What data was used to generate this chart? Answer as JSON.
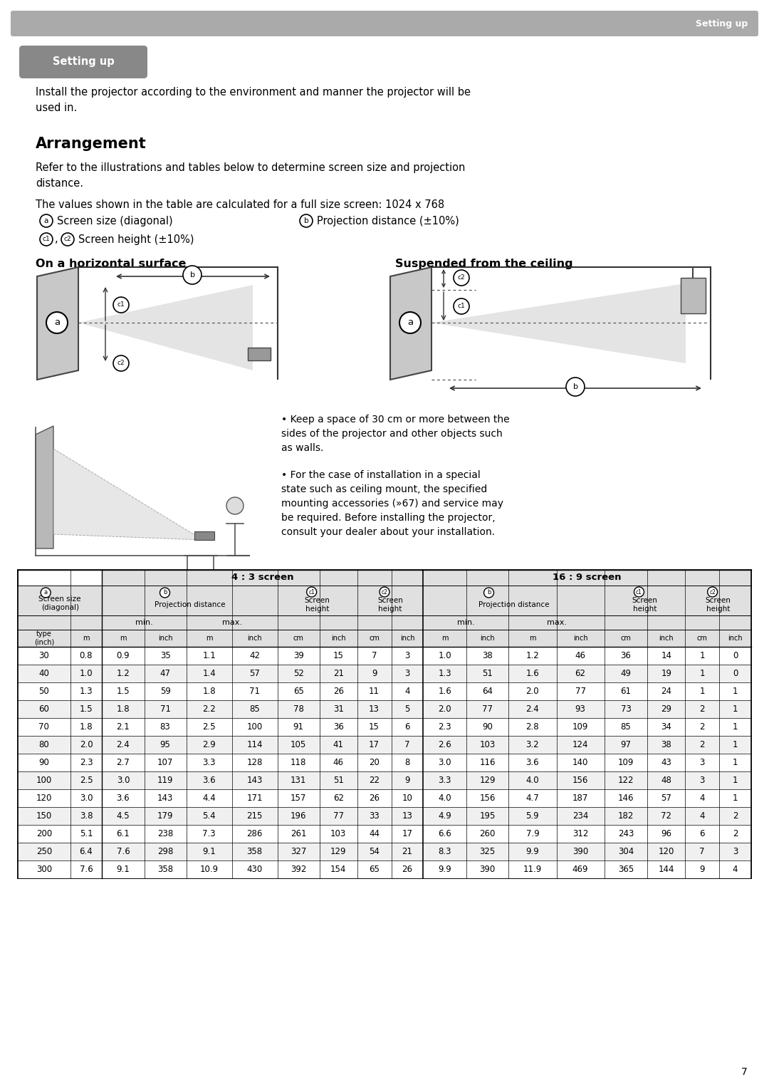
{
  "page_bg": "#ffffff",
  "header_bar_color": "#aaaaaa",
  "header_text": "Setting up",
  "header_text_color": "#ffffff",
  "setting_up_btn_color": "#888888",
  "setting_up_btn_text": "Setting up",
  "intro_text": "Install the projector according to the environment and manner the projector will be\nused in.",
  "arrangement_title": "Arrangement",
  "ref_text": "Refer to the illustrations and tables below to determine screen size and projection\ndistance.",
  "values_text": "The values shown in the table are calculated for a full size screen: 1024 x 768",
  "legend_a": "Screen size (diagonal)",
  "legend_b": "Projection distance (±10%)",
  "legend_c1c2": "Screen height (±10%)",
  "horiz_title": "On a horizontal surface",
  "ceiling_title": "Suspended from the ceiling",
  "bullet1": "• Keep a space of 30 cm or more between the\nsides of the projector and other objects such\nas walls.",
  "bullet2": "• For the case of installation in a special\nstate such as ceiling mount, the specified\nmounting accessories (»67) and service may\nbe required. Before installing the projector,\nconsult your dealer about your installation.",
  "table_header_43": "4 : 3 screen",
  "table_header_169": "16 : 9 screen",
  "table_data": [
    [
      30,
      0.8,
      0.9,
      35,
      1.1,
      42,
      39,
      15,
      7,
      3,
      1.0,
      38,
      1.2,
      46,
      36,
      14,
      1,
      0
    ],
    [
      40,
      1.0,
      1.2,
      47,
      1.4,
      57,
      52,
      21,
      9,
      3,
      1.3,
      51,
      1.6,
      62,
      49,
      19,
      1,
      0
    ],
    [
      50,
      1.3,
      1.5,
      59,
      1.8,
      71,
      65,
      26,
      11,
      4,
      1.6,
      64,
      2.0,
      77,
      61,
      24,
      1,
      1
    ],
    [
      60,
      1.5,
      1.8,
      71,
      2.2,
      85,
      78,
      31,
      13,
      5,
      2.0,
      77,
      2.4,
      93,
      73,
      29,
      2,
      1
    ],
    [
      70,
      1.8,
      2.1,
      83,
      2.5,
      100,
      91,
      36,
      15,
      6,
      2.3,
      90,
      2.8,
      109,
      85,
      34,
      2,
      1
    ],
    [
      80,
      2.0,
      2.4,
      95,
      2.9,
      114,
      105,
      41,
      17,
      7,
      2.6,
      103,
      3.2,
      124,
      97,
      38,
      2,
      1
    ],
    [
      90,
      2.3,
      2.7,
      107,
      3.3,
      128,
      118,
      46,
      20,
      8,
      3.0,
      116,
      3.6,
      140,
      109,
      43,
      3,
      1
    ],
    [
      100,
      2.5,
      3.0,
      119,
      3.6,
      143,
      131,
      51,
      22,
      9,
      3.3,
      129,
      4.0,
      156,
      122,
      48,
      3,
      1
    ],
    [
      120,
      3.0,
      3.6,
      143,
      4.4,
      171,
      157,
      62,
      26,
      10,
      4.0,
      156,
      4.7,
      187,
      146,
      57,
      4,
      1
    ],
    [
      150,
      3.8,
      4.5,
      179,
      5.4,
      215,
      196,
      77,
      33,
      13,
      4.9,
      195,
      5.9,
      234,
      182,
      72,
      4,
      2
    ],
    [
      200,
      5.1,
      6.1,
      238,
      7.3,
      286,
      261,
      103,
      44,
      17,
      6.6,
      260,
      7.9,
      312,
      243,
      96,
      6,
      2
    ],
    [
      250,
      6.4,
      7.6,
      298,
      9.1,
      358,
      327,
      129,
      54,
      21,
      8.3,
      325,
      9.9,
      390,
      304,
      120,
      7,
      3
    ],
    [
      300,
      7.6,
      9.1,
      358,
      10.9,
      430,
      392,
      154,
      65,
      26,
      9.9,
      390,
      11.9,
      469,
      365,
      144,
      9,
      4
    ]
  ],
  "page_number": "7"
}
